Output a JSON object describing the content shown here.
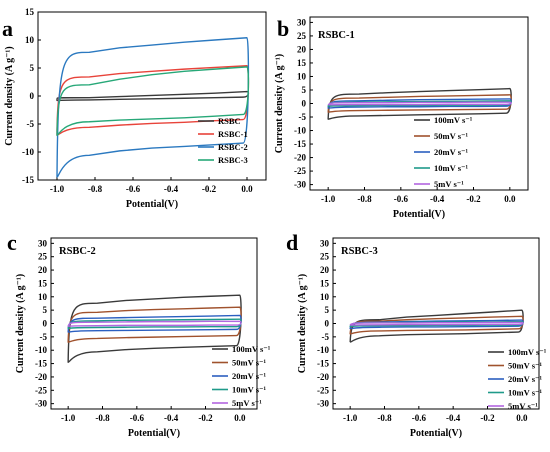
{
  "chart_data": [
    {
      "panel": "a",
      "type": "line",
      "xlabel": "Potential(V)",
      "ylabel": "Current density (A g⁻¹)",
      "xlim": [
        -1.1,
        0.1
      ],
      "ylim": [
        -15,
        15
      ],
      "xticks": [
        "-1.0",
        "-0.8",
        "-0.6",
        "-0.4",
        "-0.2",
        "0.0"
      ],
      "yticks": [
        "-15",
        "-10",
        "-5",
        "0",
        "5",
        "10",
        "15"
      ],
      "legend": "bottom-right",
      "series": [
        {
          "name": "RSBC",
          "color": "#3a3a3a",
          "v_start": -1.0,
          "v_end": 0.0,
          "upper": [
            -0.4,
            -0.3,
            -0.1,
            0.1,
            0.3,
            0.5,
            0.8
          ],
          "lower": [
            -0.8,
            -0.7,
            -0.6,
            -0.5,
            -0.4,
            -0.3,
            -0.2
          ]
        },
        {
          "name": "RSBC-1",
          "color": "#e8433a",
          "v_start": -1.0,
          "v_end": 0.0,
          "upper": [
            -6.0,
            3.4,
            4.0,
            4.4,
            4.8,
            5.1,
            5.4
          ],
          "lower": [
            -7.0,
            -5.6,
            -5.2,
            -4.9,
            -4.7,
            -4.4,
            -4.2
          ]
        },
        {
          "name": "RSBC-2",
          "color": "#2b79c0",
          "v_start": -1.0,
          "v_end": 0.0,
          "upper": [
            -14.5,
            7.8,
            8.6,
            9.1,
            9.6,
            10.0,
            10.4
          ],
          "lower": [
            -14.5,
            -10.6,
            -9.8,
            -9.3,
            -9.0,
            -8.7,
            -8.4
          ]
        },
        {
          "name": "RSBC-3",
          "color": "#27a878",
          "v_start": -1.0,
          "v_end": 0.0,
          "upper": [
            -6.8,
            2.0,
            3.0,
            3.8,
            4.4,
            4.8,
            5.2
          ],
          "lower": [
            -7.0,
            -4.6,
            -4.3,
            -4.1,
            -3.9,
            -3.6,
            -3.3
          ]
        }
      ]
    },
    {
      "panel": "b",
      "type": "line",
      "title": "RSBC-1",
      "xlabel": "Potential(V)",
      "ylabel": "Current density (A g⁻¹)",
      "xlim": [
        -1.1,
        0.1
      ],
      "ylim": [
        -32,
        32
      ],
      "xticks": [
        "-1.0",
        "-0.8",
        "-0.6",
        "-0.4",
        "-0.2",
        "0.0"
      ],
      "yticks": [
        "-30",
        "-25",
        "-20",
        "-15",
        "-10",
        "-5",
        "0",
        "5",
        "10",
        "15",
        "20",
        "25",
        "30"
      ],
      "legend": "right",
      "series": [
        {
          "name": "100mV s⁻¹",
          "color": "#3a3a3a",
          "v_start": -1.0,
          "v_end": 0.0,
          "upper": [
            -5.5,
            3.5,
            4.0,
            4.4,
            4.8,
            5.1,
            5.5
          ],
          "lower": [
            -5.8,
            -4.6,
            -4.4,
            -4.2,
            -4.0,
            -3.8,
            -3.6
          ]
        },
        {
          "name": "50mV s⁻¹",
          "color": "#a0522d",
          "v_start": -1.0,
          "v_end": 0.0,
          "upper": [
            -3.0,
            2.0,
            2.3,
            2.6,
            2.8,
            3.0,
            3.2
          ],
          "lower": [
            -3.2,
            -2.6,
            -2.5,
            -2.4,
            -2.3,
            -2.2,
            -2.1
          ]
        },
        {
          "name": "20mV s⁻¹",
          "color": "#2b5fc0",
          "v_start": -1.0,
          "v_end": 0.0,
          "upper": [
            -1.6,
            1.0,
            1.2,
            1.4,
            1.5,
            1.6,
            1.7
          ],
          "lower": [
            -1.7,
            -1.3,
            -1.2,
            -1.2,
            -1.1,
            -1.1,
            -1.0
          ]
        },
        {
          "name": "10mV s⁻¹",
          "color": "#1f9a8a",
          "v_start": -1.0,
          "v_end": 0.0,
          "upper": [
            -0.9,
            0.5,
            0.6,
            0.7,
            0.8,
            0.9,
            1.0
          ],
          "lower": [
            -1.0,
            -0.8,
            -0.7,
            -0.7,
            -0.6,
            -0.6,
            -0.5
          ]
        },
        {
          "name": "5mV s⁻¹",
          "color": "#b266e0",
          "v_start": -1.0,
          "v_end": 0.0,
          "upper": [
            -0.5,
            0.3,
            0.3,
            0.4,
            0.4,
            0.5,
            0.5
          ],
          "lower": [
            -0.5,
            -0.4,
            -0.4,
            -0.4,
            -0.3,
            -0.3,
            -0.3
          ]
        }
      ]
    },
    {
      "panel": "c",
      "type": "line",
      "title": "RSBC-2",
      "xlabel": "Potential(V)",
      "ylabel": "Current density (A g⁻¹)",
      "xlim": [
        -1.1,
        0.1
      ],
      "ylim": [
        -32,
        32
      ],
      "xticks": [
        "-1.0",
        "-0.8",
        "-0.6",
        "-0.4",
        "-0.2",
        "0.0"
      ],
      "yticks": [
        "-30",
        "-25",
        "-20",
        "-15",
        "-10",
        "-5",
        "0",
        "5",
        "10",
        "15",
        "20",
        "25",
        "30"
      ],
      "legend": "bottom-right",
      "series": [
        {
          "name": "100mV s⁻¹",
          "color": "#3a3a3a",
          "v_start": -1.0,
          "v_end": 0.0,
          "upper": [
            -14.0,
            7.6,
            8.6,
            9.2,
            9.8,
            10.2,
            10.6
          ],
          "lower": [
            -14.5,
            -10.6,
            -9.8,
            -9.3,
            -8.9,
            -8.6,
            -8.3
          ]
        },
        {
          "name": "50mV s⁻¹",
          "color": "#a0522d",
          "v_start": -1.0,
          "v_end": 0.0,
          "upper": [
            -6.5,
            4.2,
            4.8,
            5.2,
            5.5,
            5.8,
            6.1
          ],
          "lower": [
            -7.0,
            -5.6,
            -5.3,
            -5.1,
            -4.9,
            -4.7,
            -4.5
          ]
        },
        {
          "name": "20mV s⁻¹",
          "color": "#2b5fc0",
          "v_start": -1.0,
          "v_end": 0.0,
          "upper": [
            -3.0,
            2.0,
            2.2,
            2.4,
            2.6,
            2.8,
            3.0
          ],
          "lower": [
            -3.2,
            -2.7,
            -2.6,
            -2.5,
            -2.4,
            -2.3,
            -2.2
          ]
        },
        {
          "name": "10mV s⁻¹",
          "color": "#1f9a8a",
          "v_start": -1.0,
          "v_end": 0.0,
          "upper": [
            -1.7,
            1.0,
            1.2,
            1.3,
            1.4,
            1.5,
            1.6
          ],
          "lower": [
            -1.8,
            -1.5,
            -1.4,
            -1.3,
            -1.3,
            -1.2,
            -1.2
          ]
        },
        {
          "name": "5mV s⁻¹",
          "color": "#b266e0",
          "v_start": -1.0,
          "v_end": 0.0,
          "upper": [
            -0.9,
            0.5,
            0.6,
            0.7,
            0.7,
            0.8,
            0.8
          ],
          "lower": [
            -1.0,
            -0.8,
            -0.7,
            -0.7,
            -0.7,
            -0.6,
            -0.6
          ]
        }
      ]
    },
    {
      "panel": "d",
      "type": "line",
      "title": "RSBC-3",
      "xlabel": "Potential(V)",
      "ylabel": "Current density (A g⁻¹)",
      "xlim": [
        -1.1,
        0.1
      ],
      "ylim": [
        -32,
        32
      ],
      "xticks": [
        "-1.0",
        "-0.8",
        "-0.6",
        "-0.4",
        "-0.2",
        "0.0"
      ],
      "yticks": [
        "-30",
        "-25",
        "-20",
        "-15",
        "-10",
        "-5",
        "0",
        "5",
        "10",
        "15",
        "20",
        "25",
        "30"
      ],
      "legend": "bottom-right",
      "series": [
        {
          "name": "100mV s⁻¹",
          "color": "#3a3a3a",
          "v_start": -1.0,
          "v_end": 0.0,
          "upper": [
            -7.0,
            1.4,
            2.4,
            3.0,
            3.7,
            4.3,
            5.0
          ],
          "lower": [
            -7.0,
            -4.6,
            -4.2,
            -4.0,
            -3.8,
            -3.5,
            -3.2
          ]
        },
        {
          "name": "50mV s⁻¹",
          "color": "#a0522d",
          "v_start": -1.0,
          "v_end": 0.0,
          "upper": [
            -3.8,
            0.9,
            1.4,
            1.8,
            2.1,
            2.4,
            2.7
          ],
          "lower": [
            -3.9,
            -2.8,
            -2.6,
            -2.5,
            -2.4,
            -2.2,
            -2.0
          ]
        },
        {
          "name": "20mV s⁻¹",
          "color": "#2b5fc0",
          "v_start": -1.0,
          "v_end": 0.0,
          "upper": [
            -1.8,
            0.5,
            0.7,
            0.9,
            1.0,
            1.1,
            1.3
          ],
          "lower": [
            -1.9,
            -1.4,
            -1.3,
            -1.3,
            -1.2,
            -1.1,
            -1.0
          ]
        },
        {
          "name": "10mV s⁻¹",
          "color": "#1f9a8a",
          "v_start": -1.0,
          "v_end": 0.0,
          "upper": [
            -1.0,
            0.3,
            0.4,
            0.5,
            0.6,
            0.6,
            0.7
          ],
          "lower": [
            -1.1,
            -0.8,
            -0.8,
            -0.7,
            -0.7,
            -0.6,
            -0.6
          ]
        },
        {
          "name": "5mV s⁻¹",
          "color": "#b266e0",
          "v_start": -1.0,
          "v_end": 0.0,
          "upper": [
            -0.6,
            0.2,
            0.2,
            0.3,
            0.3,
            0.4,
            0.4
          ],
          "lower": [
            -0.6,
            -0.5,
            -0.4,
            -0.4,
            -0.4,
            -0.3,
            -0.3
          ]
        }
      ]
    }
  ]
}
